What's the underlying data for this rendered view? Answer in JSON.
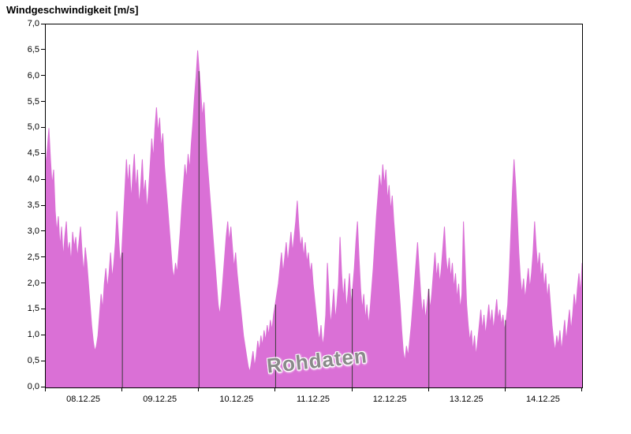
{
  "title": "Windgeschwindigkeit [m/s]",
  "watermark": "Rohdaten",
  "chart_data": {
    "type": "area",
    "title": "Windgeschwindigkeit [m/s]",
    "ylabel": "Windgeschwindigkeit",
    "unit": "m/s",
    "ylim": [
      0,
      7
    ],
    "y_tick_step": 0.5,
    "y_tick_labels": [
      "0,0",
      "0,5",
      "1,0",
      "1,5",
      "2,0",
      "2,5",
      "3,0",
      "3,5",
      "4,0",
      "4,5",
      "5,0",
      "5,5",
      "6,0",
      "6,5",
      "7,0"
    ],
    "x_labels": [
      "08.12.25",
      "09.12.25",
      "10.12.25",
      "11.12.25",
      "12.12.25",
      "13.12.25",
      "14.12.25"
    ],
    "days": 7,
    "legend": "none",
    "grid": "off",
    "fill_color": "#da70d6",
    "frame_color": "#000000",
    "day_separator_color": "#3a3a3a",
    "values": [
      4.3,
      4.6,
      5.0,
      4.4,
      3.9,
      4.2,
      3.4,
      3.0,
      3.3,
      2.7,
      3.1,
      2.5,
      2.9,
      3.2,
      2.6,
      2.8,
      2.4,
      3.0,
      2.7,
      2.9,
      2.5,
      2.8,
      3.1,
      2.6,
      2.2,
      2.7,
      2.4,
      2.0,
      1.6,
      1.2,
      0.9,
      0.7,
      0.8,
      1.0,
      1.4,
      1.8,
      1.5,
      2.0,
      2.3,
      1.9,
      2.2,
      2.6,
      2.1,
      2.4,
      2.8,
      3.4,
      2.9,
      2.4,
      2.6,
      3.2,
      3.8,
      4.4,
      3.9,
      4.3,
      3.6,
      4.1,
      4.5,
      3.8,
      4.2,
      3.5,
      3.9,
      4.4,
      3.7,
      4.0,
      3.4,
      3.8,
      4.3,
      4.8,
      4.4,
      5.0,
      5.4,
      4.9,
      5.2,
      4.6,
      4.9,
      4.3,
      3.9,
      3.5,
      3.1,
      2.7,
      2.3,
      2.1,
      2.4,
      2.2,
      2.6,
      3.0,
      3.5,
      3.9,
      4.3,
      4.0,
      4.5,
      4.2,
      4.7,
      5.1,
      5.6,
      6.0,
      6.5,
      6.1,
      5.7,
      5.2,
      5.5,
      4.9,
      4.4,
      4.0,
      3.6,
      3.2,
      2.8,
      2.4,
      2.0,
      1.6,
      1.4,
      1.7,
      2.1,
      2.5,
      2.9,
      3.2,
      2.8,
      3.1,
      2.7,
      2.3,
      2.6,
      2.2,
      1.9,
      1.6,
      1.3,
      1.0,
      0.8,
      0.6,
      0.4,
      0.3,
      0.5,
      0.7,
      0.4,
      0.6,
      0.9,
      0.7,
      1.0,
      0.8,
      1.1,
      0.9,
      1.2,
      1.0,
      1.3,
      1.1,
      1.4,
      1.6,
      1.8,
      2.0,
      2.3,
      2.6,
      2.2,
      2.5,
      2.8,
      2.4,
      2.7,
      3.0,
      2.6,
      2.9,
      3.2,
      3.6,
      3.1,
      2.7,
      2.9,
      2.5,
      2.8,
      2.4,
      2.6,
      2.2,
      2.4,
      2.0,
      1.7,
      1.4,
      1.1,
      0.9,
      1.2,
      0.8,
      1.0,
      1.4,
      2.4,
      1.8,
      1.2,
      1.5,
      1.9,
      1.3,
      1.6,
      2.0,
      2.9,
      2.2,
      1.7,
      2.1,
      1.5,
      1.8,
      2.2,
      1.6,
      1.9,
      2.3,
      2.8,
      3.2,
      2.5,
      1.9,
      1.5,
      1.8,
      1.3,
      1.6,
      1.2,
      1.5,
      1.9,
      2.3,
      2.8,
      3.3,
      3.7,
      4.1,
      3.8,
      4.3,
      3.9,
      4.2,
      3.6,
      3.9,
      3.4,
      3.7,
      3.2,
      2.8,
      2.4,
      2.0,
      1.6,
      1.1,
      0.7,
      0.5,
      0.8,
      0.6,
      0.9,
      1.2,
      1.6,
      2.0,
      2.4,
      2.8,
      2.3,
      1.8,
      1.4,
      1.7,
      1.3,
      1.6,
      1.9,
      1.5,
      1.8,
      2.2,
      2.6,
      2.1,
      2.4,
      2.0,
      2.3,
      2.7,
      3.1,
      2.5,
      2.2,
      2.5,
      2.1,
      2.4,
      1.9,
      2.2,
      1.7,
      2.0,
      1.5,
      1.8,
      3.2,
      2.4,
      1.6,
      1.2,
      0.9,
      1.1,
      0.7,
      1.0,
      0.6,
      0.9,
      1.2,
      1.5,
      1.1,
      1.4,
      1.0,
      1.3,
      1.6,
      1.2,
      1.5,
      1.1,
      1.4,
      1.7,
      1.3,
      1.5,
      1.2,
      1.4,
      1.1,
      1.3,
      1.6,
      2.2,
      3.0,
      3.8,
      4.4,
      3.9,
      3.3,
      2.6,
      2.1,
      1.8,
      2.1,
      1.7,
      2.0,
      2.3,
      1.9,
      2.2,
      2.6,
      3.2,
      2.7,
      2.3,
      2.6,
      2.1,
      2.4,
      1.9,
      2.2,
      1.7,
      2.0,
      1.6,
      1.2,
      0.9,
      0.7,
      1.0,
      0.8,
      1.1,
      0.7,
      1.0,
      1.3,
      0.9,
      1.2,
      1.5,
      1.1,
      1.4,
      1.8,
      1.5,
      1.9,
      2.2,
      1.8,
      2.4
    ]
  }
}
